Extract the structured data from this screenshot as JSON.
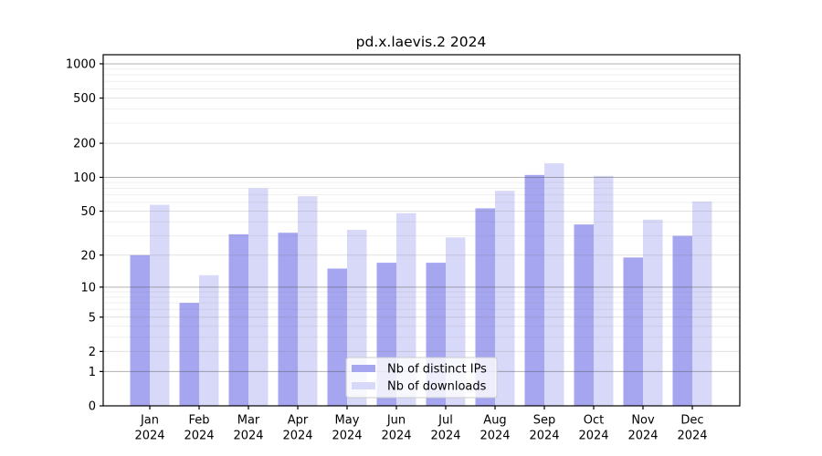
{
  "figure": {
    "background": "#ffffff"
  },
  "chart_data": {
    "type": "bar",
    "title": "pd.x.laevis.2 2024",
    "year_label": "2024",
    "categories": [
      "Jan",
      "Feb",
      "Mar",
      "Apr",
      "May",
      "Jun",
      "Jul",
      "Aug",
      "Sep",
      "Oct",
      "Nov",
      "Dec"
    ],
    "series": [
      {
        "name": "Nb of distinct IPs",
        "color": "#a5a5f0",
        "values": [
          20,
          7,
          31,
          32,
          15,
          17,
          17,
          53,
          105,
          38,
          19,
          30
        ]
      },
      {
        "name": "Nb of downloads",
        "color": "#d8d8f8",
        "values": [
          57,
          13,
          80,
          68,
          34,
          48,
          29,
          76,
          133,
          103,
          42,
          61
        ]
      }
    ],
    "yscale": "log10(value+1)",
    "y_ticks": [
      0,
      1,
      2,
      5,
      10,
      20,
      50,
      100,
      200,
      500,
      1000
    ],
    "ylim": [
      0,
      1200
    ],
    "grid": "horizontal",
    "legend_position": "lower center",
    "xlabel": "",
    "ylabel": ""
  },
  "colors": {
    "frame": "#000000",
    "grid_decade": "#b4b4b4",
    "grid_labeled": "#e3e3e3",
    "grid_minor": "#f0f0f0",
    "legend_border": "#cccccc",
    "legend_background": "#ffffff",
    "tick": "#000000"
  }
}
